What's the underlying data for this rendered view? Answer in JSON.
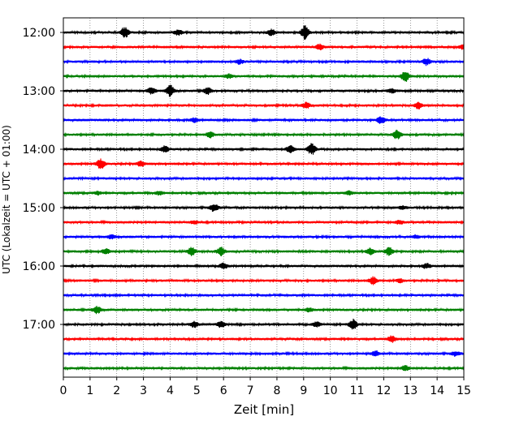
{
  "chart_data": {
    "type": "line",
    "title": "",
    "xlabel": "Zeit  [min]",
    "ylabel": "UTC (Lokalzeit = UTC + 01:00)",
    "xlim": [
      0,
      15
    ],
    "x_ticks": [
      0,
      1,
      2,
      3,
      4,
      5,
      6,
      7,
      8,
      9,
      10,
      11,
      12,
      13,
      14,
      15
    ],
    "x_tick_labels": [
      "0",
      "1",
      "2",
      "3",
      "4",
      "5",
      "6",
      "7",
      "8",
      "9",
      "10",
      "11",
      "12",
      "13",
      "14",
      "15"
    ],
    "y_tick_labels": [
      "12:00",
      "13:00",
      "14:00",
      "15:00",
      "16:00",
      "17:00"
    ],
    "grid": "vertical dotted",
    "colors": [
      "#000000",
      "#ff0000",
      "#0000ff",
      "#008000"
    ],
    "traces": [
      {
        "start": "12:00",
        "color": "#000000",
        "events": [
          [
            2.3,
            1.0
          ],
          [
            4.3,
            0.5
          ],
          [
            7.8,
            0.55
          ],
          [
            9.05,
            1.2
          ]
        ]
      },
      {
        "start": "12:15",
        "color": "#ff0000",
        "events": [
          [
            9.6,
            0.45
          ],
          [
            15.0,
            0.5
          ]
        ]
      },
      {
        "start": "12:30",
        "color": "#0000ff",
        "events": [
          [
            6.6,
            0.4
          ],
          [
            13.6,
            0.6
          ]
        ]
      },
      {
        "start": "12:45",
        "color": "#008000",
        "events": [
          [
            6.2,
            0.35
          ],
          [
            12.8,
            1.0
          ]
        ]
      },
      {
        "start": "13:00",
        "color": "#000000",
        "events": [
          [
            3.3,
            0.6
          ],
          [
            4.0,
            1.0
          ],
          [
            5.4,
            0.6
          ],
          [
            12.3,
            0.35
          ]
        ]
      },
      {
        "start": "13:15",
        "color": "#ff0000",
        "events": [
          [
            9.1,
            0.5
          ],
          [
            13.3,
            0.6
          ]
        ]
      },
      {
        "start": "13:30",
        "color": "#0000ff",
        "events": [
          [
            4.9,
            0.35
          ],
          [
            11.9,
            0.6
          ]
        ]
      },
      {
        "start": "13:45",
        "color": "#008000",
        "events": [
          [
            5.5,
            0.5
          ],
          [
            12.5,
            0.8
          ]
        ]
      },
      {
        "start": "14:00",
        "color": "#000000",
        "events": [
          [
            3.8,
            0.6
          ],
          [
            8.5,
            0.6
          ],
          [
            9.3,
            1.0
          ]
        ]
      },
      {
        "start": "14:15",
        "color": "#ff0000",
        "events": [
          [
            1.4,
            0.9
          ],
          [
            2.9,
            0.45
          ]
        ]
      },
      {
        "start": "14:30",
        "color": "#0000ff",
        "events": []
      },
      {
        "start": "14:45",
        "color": "#008000",
        "events": [
          [
            1.3,
            0.25
          ],
          [
            3.6,
            0.3
          ],
          [
            10.7,
            0.3
          ]
        ]
      },
      {
        "start": "15:00",
        "color": "#000000",
        "events": [
          [
            5.65,
            0.7
          ],
          [
            12.7,
            0.3
          ]
        ]
      },
      {
        "start": "15:15",
        "color": "#ff0000",
        "events": [
          [
            4.9,
            0.25
          ],
          [
            12.6,
            0.3
          ]
        ]
      },
      {
        "start": "15:30",
        "color": "#0000ff",
        "events": [
          [
            1.8,
            0.3
          ],
          [
            13.2,
            0.3
          ]
        ]
      },
      {
        "start": "15:45",
        "color": "#008000",
        "events": [
          [
            1.6,
            0.45
          ],
          [
            4.8,
            0.7
          ],
          [
            5.9,
            0.8
          ],
          [
            11.5,
            0.55
          ],
          [
            12.2,
            0.7
          ]
        ]
      },
      {
        "start": "16:00",
        "color": "#000000",
        "events": [
          [
            6.0,
            0.55
          ],
          [
            13.6,
            0.45
          ]
        ]
      },
      {
        "start": "16:15",
        "color": "#ff0000",
        "events": [
          [
            11.6,
            0.65
          ],
          [
            12.6,
            0.3
          ]
        ]
      },
      {
        "start": "16:30",
        "color": "#0000ff",
        "events": []
      },
      {
        "start": "16:45",
        "color": "#008000",
        "events": [
          [
            1.25,
            0.7
          ],
          [
            9.2,
            0.3
          ]
        ]
      },
      {
        "start": "17:00",
        "color": "#000000",
        "events": [
          [
            4.9,
            0.5
          ],
          [
            5.9,
            0.55
          ],
          [
            9.5,
            0.45
          ],
          [
            10.85,
            0.9
          ]
        ]
      },
      {
        "start": "17:15",
        "color": "#ff0000",
        "events": [
          [
            12.3,
            0.6
          ]
        ]
      },
      {
        "start": "17:30",
        "color": "#0000ff",
        "events": [
          [
            11.7,
            0.5
          ],
          [
            14.7,
            0.4
          ]
        ]
      },
      {
        "start": "17:45",
        "color": "#008000",
        "events": [
          [
            12.8,
            0.4
          ]
        ]
      }
    ]
  }
}
